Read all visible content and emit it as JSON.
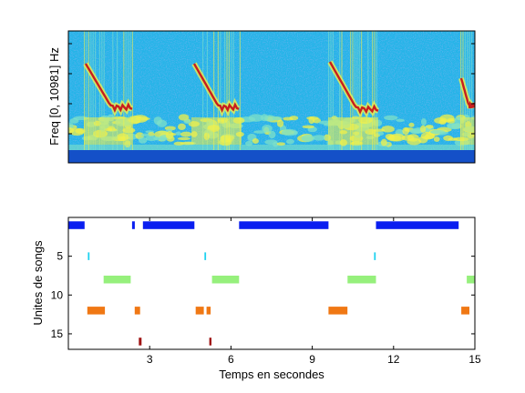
{
  "chart_data": [
    {
      "type": "heatmap",
      "ylabel": "Freq [0, 10981] Hz",
      "colors": {
        "background": "#1eb4e6",
        "low": "#1450c8",
        "mid": "#7ee0c8",
        "high": "#f0f04a",
        "peak": "#c81e1e"
      },
      "grid": false
    },
    {
      "type": "bar",
      "xlabel": "Temps en secondes",
      "ylabel": "Unites de songs",
      "xlim": [
        0,
        15
      ],
      "ylim": [
        0,
        17
      ],
      "xticks": [
        3,
        6,
        9,
        12,
        15
      ],
      "yticks": [
        5,
        10,
        15
      ],
      "grid": false,
      "series": [
        {
          "unit": 1,
          "color": "#0a1ef0",
          "segments": [
            [
              0.0,
              0.6
            ],
            [
              2.35,
              2.45
            ],
            [
              2.75,
              4.65
            ],
            [
              6.3,
              9.6
            ],
            [
              11.35,
              14.4
            ]
          ]
        },
        {
          "unit": 5,
          "color": "#1ed2f0",
          "segments": [
            [
              0.72,
              0.78
            ],
            [
              5.02,
              5.08
            ],
            [
              11.28,
              11.34
            ]
          ]
        },
        {
          "unit": 8,
          "color": "#96f07c",
          "segments": [
            [
              1.3,
              2.3
            ],
            [
              5.3,
              6.3
            ],
            [
              10.3,
              11.35
            ],
            [
              14.7,
              15.0
            ]
          ]
        },
        {
          "unit": 12,
          "color": "#f07814",
          "segments": [
            [
              0.7,
              1.35
            ],
            [
              2.45,
              2.65
            ],
            [
              4.7,
              5.0
            ],
            [
              5.1,
              5.25
            ],
            [
              9.6,
              10.3
            ],
            [
              14.5,
              14.8
            ]
          ]
        },
        {
          "unit": 16,
          "color": "#a01414",
          "segments": [
            [
              2.6,
              2.7
            ],
            [
              5.2,
              5.28
            ]
          ]
        }
      ]
    }
  ]
}
